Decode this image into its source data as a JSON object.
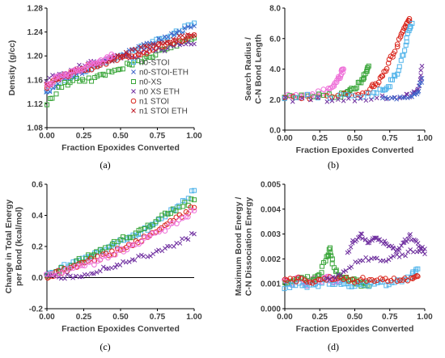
{
  "chart_data": [
    {
      "type": "scatter",
      "panel_label": "(a)",
      "xlabel": "Fraction Epoxides Converted",
      "ylabel": "Density (g/cc)",
      "xlim": [
        0,
        1
      ],
      "ylim": [
        1.08,
        1.28
      ],
      "xticks": [
        "0.00",
        "0.25",
        "0.50",
        "0.75",
        "1.00"
      ],
      "yticks": [
        "1.08",
        "1.12",
        "1.16",
        "1.20",
        "1.24",
        "1.28"
      ],
      "grid": false,
      "legend_position": "right",
      "legend": [
        "n0-STOI",
        "n0-STOI-ETH",
        "n0-XS",
        "n0 XS ETH",
        "n1 STOI",
        "n1 STOI ETH"
      ],
      "series": [
        {
          "name": "n0-STOI",
          "marker": "square",
          "color": "#4fb3ea",
          "x": [
            0.0,
            0.1,
            0.2,
            0.3,
            0.4,
            0.5,
            0.6,
            0.7,
            0.8,
            0.9,
            1.0
          ],
          "y": [
            1.14,
            1.16,
            1.17,
            1.18,
            1.19,
            1.2,
            1.21,
            1.22,
            1.23,
            1.24,
            1.255
          ]
        },
        {
          "name": "n0-STOI-ETH",
          "marker": "x",
          "color": "#3d62c8",
          "x": [
            0.0,
            0.1,
            0.2,
            0.3,
            0.4,
            0.5,
            0.6,
            0.7,
            0.8,
            0.9,
            1.0
          ],
          "y": [
            1.14,
            1.16,
            1.17,
            1.18,
            1.19,
            1.2,
            1.21,
            1.22,
            1.23,
            1.24,
            1.25
          ]
        },
        {
          "name": "n0-XS",
          "marker": "square",
          "color": "#3aa63a",
          "x": [
            0.0,
            0.1,
            0.2,
            0.3,
            0.4,
            0.5,
            0.6,
            0.7,
            0.8,
            0.9,
            1.0
          ],
          "y": [
            1.12,
            1.15,
            1.16,
            1.16,
            1.17,
            1.18,
            1.19,
            1.2,
            1.21,
            1.22,
            1.23
          ]
        },
        {
          "name": "n0 XS ETH",
          "marker": "x",
          "color": "#7030a0",
          "x": [
            0.0,
            0.1,
            0.2,
            0.3,
            0.4,
            0.5,
            0.6,
            0.7,
            0.8,
            0.9,
            1.0
          ],
          "y": [
            1.16,
            1.17,
            1.18,
            1.19,
            1.19,
            1.2,
            1.2,
            1.21,
            1.21,
            1.22,
            1.22
          ]
        },
        {
          "name": "n1 STOI",
          "marker": "circle",
          "color": "#d9261c",
          "x": [
            0.0,
            0.1,
            0.2,
            0.3,
            0.4,
            0.5,
            0.6,
            0.7,
            0.8,
            0.9,
            1.0
          ],
          "y": [
            1.15,
            1.165,
            1.175,
            1.18,
            1.19,
            1.195,
            1.2,
            1.21,
            1.22,
            1.225,
            1.235
          ]
        },
        {
          "name": "n1 STOI ETH",
          "marker": "x",
          "color": "#c0202c",
          "x": [
            0.0,
            0.1,
            0.2,
            0.3,
            0.4,
            0.5,
            0.6,
            0.7,
            0.8,
            0.9,
            1.0
          ],
          "y": [
            1.15,
            1.165,
            1.175,
            1.185,
            1.19,
            1.2,
            1.21,
            1.215,
            1.22,
            1.23,
            1.235
          ]
        },
        {
          "name": "pink",
          "marker": "circle",
          "color": "#ee6fd8",
          "x": [
            0.0,
            0.05,
            0.1,
            0.15,
            0.2,
            0.25,
            0.3,
            0.35,
            0.4,
            0.45
          ],
          "y": [
            1.15,
            1.16,
            1.165,
            1.17,
            1.175,
            1.18,
            1.185,
            1.19,
            1.195,
            1.2
          ]
        }
      ]
    },
    {
      "type": "scatter",
      "panel_label": "(b)",
      "xlabel": "Fraction Epoxides Converted",
      "ylabel": "Search Radius / C-N Bond Length",
      "xlim": [
        0,
        1
      ],
      "ylim": [
        0,
        8
      ],
      "xticks": [
        "0.00",
        "0.25",
        "0.50",
        "0.75",
        "1.00"
      ],
      "yticks": [
        "0.0",
        "2.0",
        "4.0",
        "6.0",
        "8.0"
      ],
      "grid": false,
      "series": [
        {
          "name": "pink",
          "marker": "circle",
          "color": "#ee6fd8",
          "x": [
            0.0,
            0.1,
            0.2,
            0.3,
            0.35,
            0.38,
            0.4,
            0.42
          ],
          "y": [
            2.2,
            2.2,
            2.3,
            2.6,
            2.9,
            3.3,
            3.7,
            4.0
          ]
        },
        {
          "name": "green",
          "marker": "square",
          "color": "#3aa63a",
          "x": [
            0.0,
            0.2,
            0.4,
            0.45,
            0.5,
            0.55,
            0.58,
            0.6
          ],
          "y": [
            2.2,
            2.2,
            2.3,
            2.5,
            2.8,
            3.3,
            3.8,
            4.2
          ]
        },
        {
          "name": "red",
          "marker": "circle",
          "color": "#d9261c",
          "x": [
            0.0,
            0.3,
            0.5,
            0.6,
            0.65,
            0.7,
            0.75,
            0.8,
            0.84,
            0.87,
            0.89
          ],
          "y": [
            2.2,
            2.2,
            2.3,
            2.6,
            3.0,
            3.6,
            4.5,
            5.5,
            6.4,
            7.0,
            7.3
          ]
        },
        {
          "name": "lightblue",
          "marker": "square",
          "color": "#4fb3ea",
          "x": [
            0.0,
            0.4,
            0.6,
            0.7,
            0.75,
            0.8,
            0.85,
            0.88,
            0.91
          ],
          "y": [
            2.2,
            2.2,
            2.3,
            2.6,
            3.0,
            3.8,
            5.0,
            6.2,
            7.0
          ]
        },
        {
          "name": "purple",
          "marker": "x",
          "color": "#7030a0",
          "x": [
            0.0,
            0.3,
            0.5,
            0.7,
            0.85,
            0.92,
            0.96,
            0.98
          ],
          "y": [
            2.0,
            2.0,
            2.0,
            2.1,
            2.2,
            2.4,
            2.9,
            4.2
          ]
        },
        {
          "name": "blue",
          "marker": "x",
          "color": "#3d62c8",
          "x": [
            0.7,
            0.8,
            0.9,
            0.95,
            0.98
          ],
          "y": [
            2.0,
            2.1,
            2.2,
            2.5,
            3.4
          ]
        }
      ]
    },
    {
      "type": "scatter",
      "panel_label": "(c)",
      "xlabel": "Fraction Epoxides Converted",
      "ylabel": "Change in Total Energy per Bond (kcal/mol)",
      "xlim": [
        0,
        1
      ],
      "ylim": [
        -0.2,
        0.6
      ],
      "xticks": [
        "0.00",
        "0.25",
        "0.50",
        "0.75",
        "1.00"
      ],
      "yticks": [
        "-0.2",
        "0.0",
        "0.2",
        "0.4",
        "0.6"
      ],
      "grid": false,
      "series": [
        {
          "name": "lightblue",
          "marker": "square",
          "color": "#4fb3ea",
          "x": [
            0.0,
            0.1,
            0.2,
            0.3,
            0.4,
            0.5,
            0.6,
            0.7,
            0.8,
            0.9,
            1.0
          ],
          "y": [
            0.02,
            0.06,
            0.11,
            0.15,
            0.19,
            0.23,
            0.27,
            0.33,
            0.4,
            0.47,
            0.56
          ]
        },
        {
          "name": "green",
          "marker": "square",
          "color": "#3aa63a",
          "x": [
            0.0,
            0.1,
            0.2,
            0.3,
            0.4,
            0.5,
            0.6,
            0.7,
            0.8,
            0.9,
            1.0
          ],
          "y": [
            0.02,
            0.05,
            0.1,
            0.14,
            0.19,
            0.24,
            0.28,
            0.34,
            0.4,
            0.45,
            0.5
          ]
        },
        {
          "name": "red",
          "marker": "circle",
          "color": "#d9261c",
          "x": [
            0.0,
            0.1,
            0.2,
            0.3,
            0.4,
            0.5,
            0.6,
            0.7,
            0.8,
            0.9,
            1.0
          ],
          "y": [
            0.01,
            0.04,
            0.08,
            0.11,
            0.14,
            0.18,
            0.22,
            0.27,
            0.33,
            0.39,
            0.45
          ]
        },
        {
          "name": "purple",
          "marker": "x",
          "color": "#7030a0",
          "x": [
            0.0,
            0.1,
            0.2,
            0.3,
            0.4,
            0.5,
            0.6,
            0.7,
            0.8,
            0.9,
            1.0
          ],
          "y": [
            0.0,
            0.0,
            0.01,
            0.03,
            0.06,
            0.09,
            0.12,
            0.15,
            0.19,
            0.23,
            0.28
          ]
        },
        {
          "name": "pink",
          "marker": "circle",
          "color": "#ee6fd8",
          "x": [
            0.0,
            0.1,
            0.2,
            0.3,
            0.4,
            0.5,
            0.6,
            0.7,
            0.8,
            0.9,
            1.0
          ],
          "y": [
            0.01,
            0.03,
            0.06,
            0.09,
            0.13,
            0.17,
            0.21,
            0.26,
            0.31,
            0.37,
            0.43
          ]
        }
      ]
    },
    {
      "type": "scatter",
      "panel_label": "(d)",
      "xlabel": "Fraction Epoxides Converted",
      "ylabel": "Maximum Bond Energy / C-N Dissociation Energy",
      "xlim": [
        0,
        1
      ],
      "ylim": [
        0,
        0.005
      ],
      "xticks": [
        "0.00",
        "0.25",
        "0.50",
        "0.75",
        "1.00"
      ],
      "yticks": [
        "0.000",
        "0.001",
        "0.002",
        "0.003",
        "0.004",
        "0.005"
      ],
      "grid": false,
      "series": [
        {
          "name": "pink",
          "marker": "circle",
          "color": "#ee6fd8",
          "x": [
            0.0,
            0.05,
            0.1,
            0.15,
            0.2,
            0.25,
            0.3,
            0.35,
            0.4
          ],
          "y": [
            0.0012,
            0.001,
            0.0013,
            0.0009,
            0.0012,
            0.0011,
            0.0013,
            0.001,
            0.0012
          ]
        },
        {
          "name": "green",
          "marker": "square",
          "color": "#3aa63a",
          "x": [
            0.0,
            0.1,
            0.2,
            0.25,
            0.3,
            0.32,
            0.35,
            0.4,
            0.45,
            0.5,
            0.55,
            0.6
          ],
          "y": [
            0.0011,
            0.0012,
            0.0012,
            0.0014,
            0.002,
            0.0024,
            0.0016,
            0.0013,
            0.0012,
            0.0011,
            0.001,
            0.0009
          ]
        },
        {
          "name": "lightblue",
          "marker": "square",
          "color": "#4fb3ea",
          "x": [
            0.0,
            0.1,
            0.2,
            0.3,
            0.4,
            0.5,
            0.6,
            0.7,
            0.8,
            0.9,
            0.95
          ],
          "y": [
            0.0009,
            0.001,
            0.0009,
            0.0011,
            0.001,
            0.0009,
            0.001,
            0.001,
            0.0011,
            0.0013,
            0.0016
          ]
        },
        {
          "name": "red",
          "marker": "circle",
          "color": "#d9261c",
          "x": [
            0.0,
            0.1,
            0.2,
            0.3,
            0.4,
            0.5,
            0.6,
            0.7,
            0.8,
            0.9,
            0.95
          ],
          "y": [
            0.0011,
            0.0012,
            0.0011,
            0.0012,
            0.0012,
            0.0011,
            0.0012,
            0.0012,
            0.0011,
            0.0012,
            0.0013
          ]
        },
        {
          "name": "purple",
          "marker": "x",
          "color": "#7030a0",
          "x": [
            0.45,
            0.5,
            0.55,
            0.6,
            0.65,
            0.7,
            0.75,
            0.8,
            0.85,
            0.9,
            0.95,
            1.0
          ],
          "y": [
            0.0022,
            0.0028,
            0.003,
            0.0026,
            0.0029,
            0.0027,
            0.0025,
            0.0023,
            0.0027,
            0.0029,
            0.0026,
            0.0022
          ]
        },
        {
          "name": "darkpurple",
          "marker": "x",
          "color": "#6a2b9a",
          "x": [
            0.3,
            0.4,
            0.5,
            0.6,
            0.7,
            0.8,
            0.9,
            1.0
          ],
          "y": [
            0.0012,
            0.0014,
            0.0018,
            0.002,
            0.0019,
            0.0021,
            0.0023,
            0.0024
          ]
        }
      ]
    }
  ]
}
